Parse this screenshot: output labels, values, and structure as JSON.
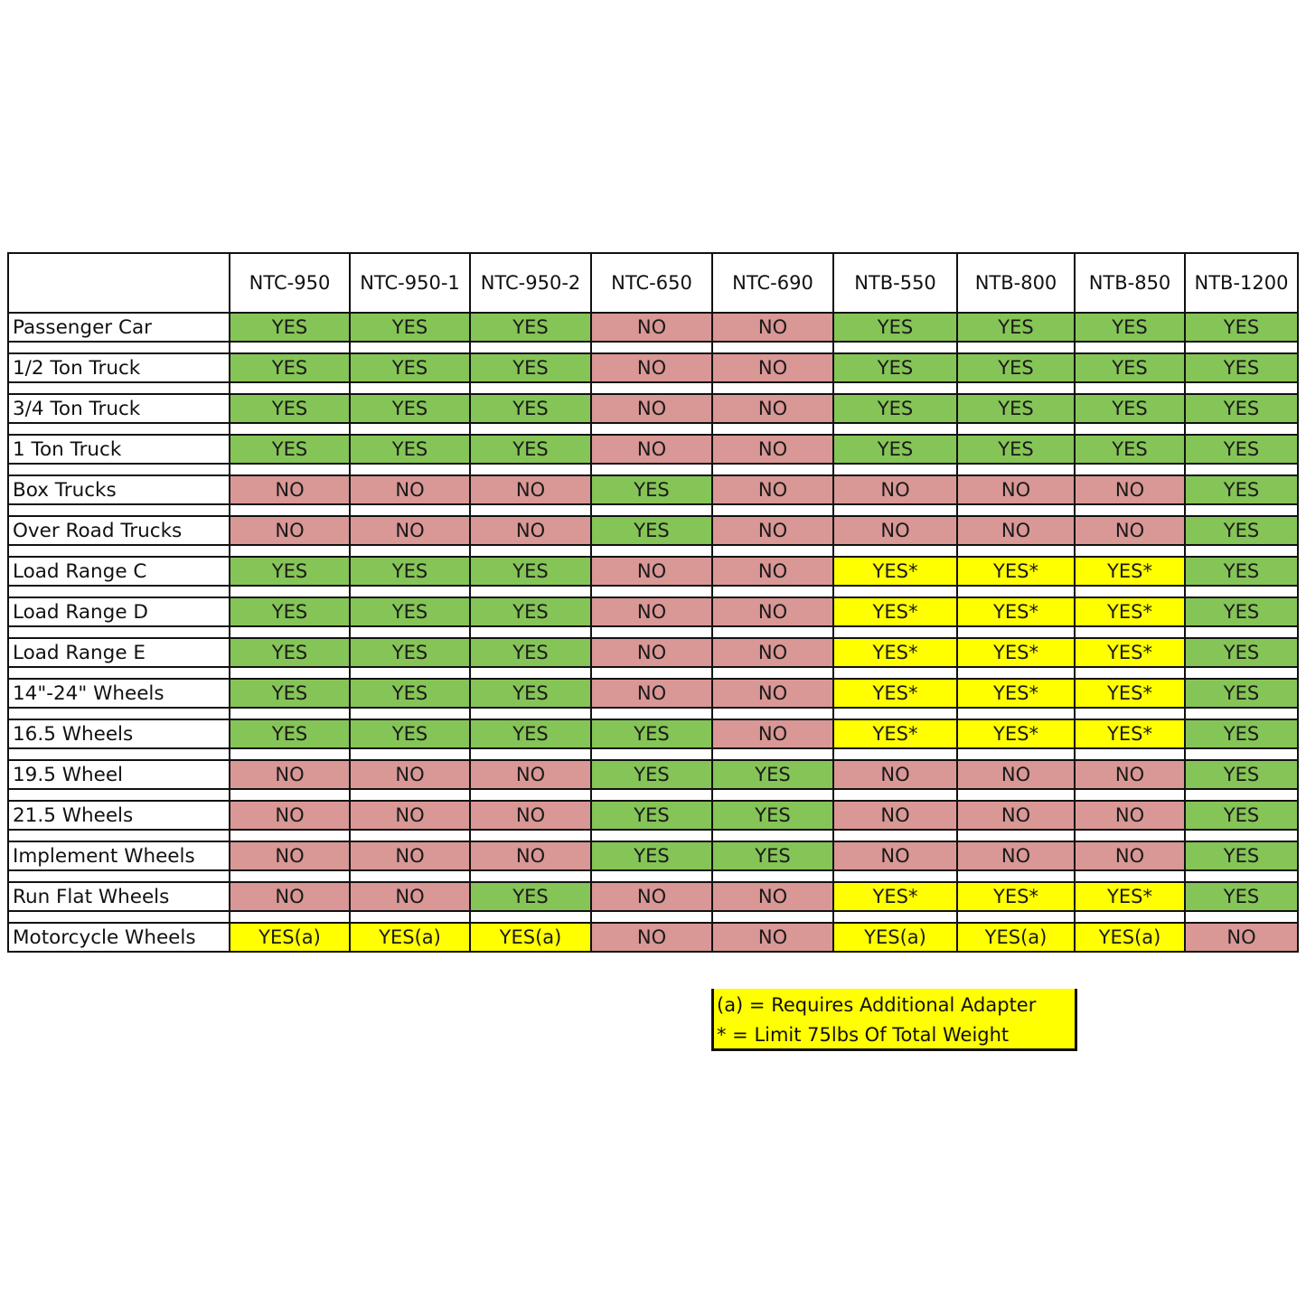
{
  "colors": {
    "yes": "#85c456",
    "no": "#d99795",
    "conditional": "#ffff00",
    "border": "#111111"
  },
  "columns": [
    "NTC-950",
    "NTC-950-1",
    "NTC-950-2",
    "NTC-650",
    "NTC-690",
    "NTB-550",
    "NTB-800",
    "NTB-850",
    "NTB-1200"
  ],
  "rows": [
    {
      "label": "Passenger Car",
      "values": [
        "YES",
        "YES",
        "YES",
        "NO",
        "NO",
        "YES",
        "YES",
        "YES",
        "YES"
      ]
    },
    {
      "label": "1/2 Ton Truck",
      "values": [
        "YES",
        "YES",
        "YES",
        "NO",
        "NO",
        "YES",
        "YES",
        "YES",
        "YES"
      ]
    },
    {
      "label": "3/4 Ton Truck",
      "values": [
        "YES",
        "YES",
        "YES",
        "NO",
        "NO",
        "YES",
        "YES",
        "YES",
        "YES"
      ]
    },
    {
      "label": "1 Ton Truck",
      "values": [
        "YES",
        "YES",
        "YES",
        "NO",
        "NO",
        "YES",
        "YES",
        "YES",
        "YES"
      ]
    },
    {
      "label": "Box Trucks",
      "values": [
        "NO",
        "NO",
        "NO",
        "YES",
        "NO",
        "NO",
        "NO",
        "NO",
        "YES"
      ]
    },
    {
      "label": "Over Road Trucks",
      "values": [
        "NO",
        "NO",
        "NO",
        "YES",
        "NO",
        "NO",
        "NO",
        "NO",
        "YES"
      ]
    },
    {
      "label": "Load Range C",
      "values": [
        "YES",
        "YES",
        "YES",
        "NO",
        "NO",
        "YES*",
        "YES*",
        "YES*",
        "YES"
      ]
    },
    {
      "label": "Load Range D",
      "values": [
        "YES",
        "YES",
        "YES",
        "NO",
        "NO",
        "YES*",
        "YES*",
        "YES*",
        "YES"
      ]
    },
    {
      "label": "Load Range E",
      "values": [
        "YES",
        "YES",
        "YES",
        "NO",
        "NO",
        "YES*",
        "YES*",
        "YES*",
        "YES"
      ]
    },
    {
      "label": "14\"-24\" Wheels",
      "values": [
        "YES",
        "YES",
        "YES",
        "NO",
        "NO",
        "YES*",
        "YES*",
        "YES*",
        "YES"
      ]
    },
    {
      "label": "16.5 Wheels",
      "values": [
        "YES",
        "YES",
        "YES",
        "YES",
        "NO",
        "YES*",
        "YES*",
        "YES*",
        "YES"
      ]
    },
    {
      "label": "19.5 Wheel",
      "values": [
        "NO",
        "NO",
        "NO",
        "YES",
        "YES",
        "NO",
        "NO",
        "NO",
        "YES"
      ]
    },
    {
      "label": "21.5 Wheels",
      "values": [
        "NO",
        "NO",
        "NO",
        "YES",
        "YES",
        "NO",
        "NO",
        "NO",
        "YES"
      ]
    },
    {
      "label": "Implement Wheels",
      "values": [
        "NO",
        "NO",
        "NO",
        "YES",
        "YES",
        "NO",
        "NO",
        "NO",
        "YES"
      ]
    },
    {
      "label": "Run Flat Wheels",
      "values": [
        "NO",
        "NO",
        "YES",
        "NO",
        "NO",
        "YES*",
        "YES*",
        "YES*",
        "YES"
      ]
    },
    {
      "label": "Motorcycle Wheels",
      "values": [
        "YES(a)",
        "YES(a)",
        "YES(a)",
        "NO",
        "NO",
        "YES(a)",
        "YES(a)",
        "YES(a)",
        "NO"
      ]
    }
  ],
  "legend": {
    "adapter_note": "(a) = Requires Additional Adapter",
    "weight_note": "* = Limit 75lbs Of Total Weight"
  }
}
